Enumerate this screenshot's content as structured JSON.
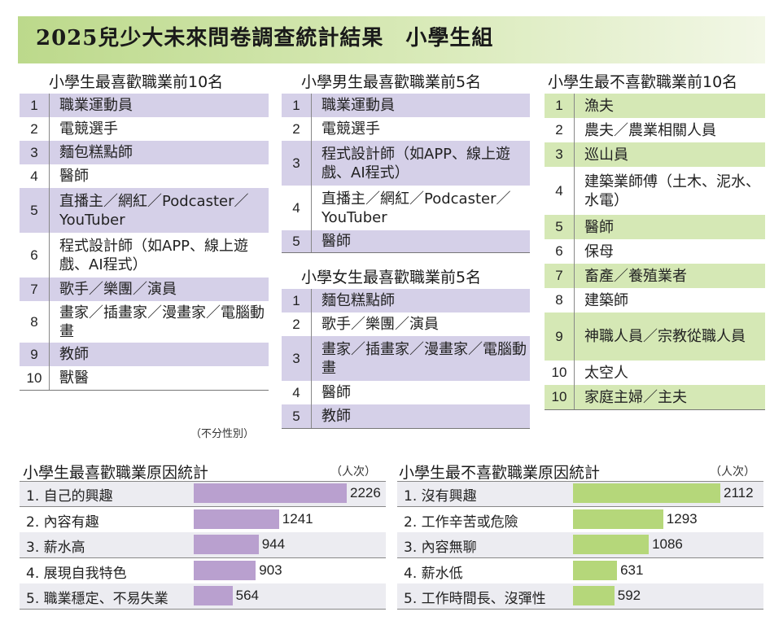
{
  "title": "2025兒少大未來問卷調查統計結果　小學生組",
  "top10": {
    "title": "小學生最喜歡職業前10名",
    "note": "（不分性別）",
    "items": [
      {
        "rank": "1",
        "job": "職業運動員"
      },
      {
        "rank": "2",
        "job": "電競選手"
      },
      {
        "rank": "3",
        "job": "麵包糕點師"
      },
      {
        "rank": "4",
        "job": "醫師"
      },
      {
        "rank": "5",
        "job": "直播主／網紅／Podcaster／YouTuber"
      },
      {
        "rank": "6",
        "job": "程式設計師（如APP、線上遊戲、AI程式）"
      },
      {
        "rank": "7",
        "job": "歌手／樂團／演員"
      },
      {
        "rank": "8",
        "job": "畫家／插畫家／漫畫家／電腦動畫"
      },
      {
        "rank": "9",
        "job": "教師"
      },
      {
        "rank": "10",
        "job": "獸醫"
      }
    ]
  },
  "boys": {
    "title": "小學男生最喜歡職業前5名",
    "items": [
      {
        "rank": "1",
        "job": "職業運動員"
      },
      {
        "rank": "2",
        "job": "電競選手"
      },
      {
        "rank": "3",
        "job": "程式設計師（如APP、線上遊戲、AI程式）"
      },
      {
        "rank": "4",
        "job": "直播主／網紅／Podcaster／YouTuber"
      },
      {
        "rank": "5",
        "job": "醫師"
      }
    ]
  },
  "girls": {
    "title": "小學女生最喜歡職業前5名",
    "items": [
      {
        "rank": "1",
        "job": "麵包糕點師"
      },
      {
        "rank": "2",
        "job": "歌手／樂團／演員"
      },
      {
        "rank": "3",
        "job": "畫家／插畫家／漫畫家／電腦動畫"
      },
      {
        "rank": "4",
        "job": "醫師"
      },
      {
        "rank": "5",
        "job": "教師"
      }
    ]
  },
  "least": {
    "title": "小學生最不喜歡職業前10名",
    "items": [
      {
        "rank": "1",
        "job": "漁夫"
      },
      {
        "rank": "2",
        "job": "農夫／農業相關人員"
      },
      {
        "rank": "3",
        "job": "巡山員"
      },
      {
        "rank": "4",
        "job": "建築業師傅（土木、泥水、水電）"
      },
      {
        "rank": "5",
        "job": "醫師"
      },
      {
        "rank": "6",
        "job": "保母"
      },
      {
        "rank": "7",
        "job": "畜產／養殖業者"
      },
      {
        "rank": "8",
        "job": "建築師"
      },
      {
        "rank": "9",
        "job": "神職人員／宗教從職人員"
      },
      {
        "rank": "10",
        "job": "太空人"
      },
      {
        "rank": "10",
        "job": "家庭主婦／主夫"
      }
    ]
  },
  "colors": {
    "purple_bar": "#b9a0cf",
    "purple_row": "#d5d0e8",
    "green_bar": "#b5d77a",
    "green_row": "#d5e8b5",
    "title_band": "#bcd98b"
  },
  "chart_data": [
    {
      "type": "bar",
      "title": "小學生最喜歡職業原因統計",
      "unit": "（人次）",
      "categories": [
        "1. 自己的興趣",
        "2. 內容有趣",
        "3. 薪水高",
        "4. 展現自我特色",
        "5. 職業穩定、不易失業"
      ],
      "values": [
        2226,
        1241,
        944,
        903,
        564
      ]
    },
    {
      "type": "bar",
      "title": "小學生最不喜歡職業原因統計",
      "unit": "（人次）",
      "categories": [
        "1. 沒有興趣",
        "2. 工作辛苦或危險",
        "3. 內容無聊",
        "4. 薪水低",
        "5. 工作時間長、沒彈性"
      ],
      "values": [
        2112,
        1293,
        1086,
        631,
        592
      ]
    }
  ]
}
